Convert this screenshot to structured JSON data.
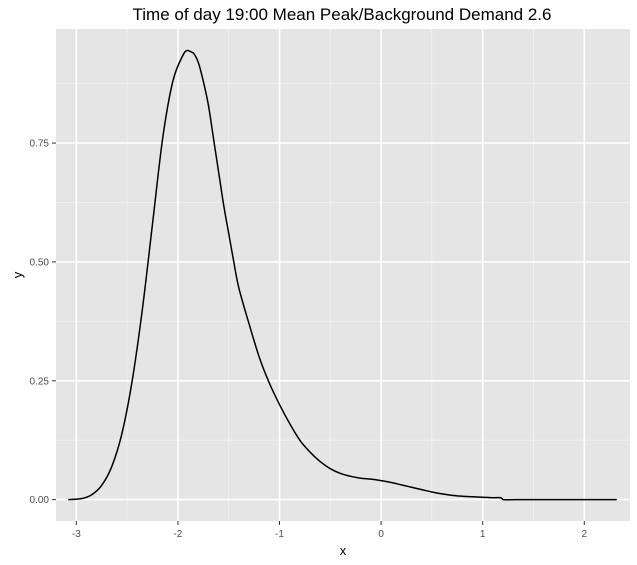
{
  "chart_data": {
    "type": "line",
    "title": "Time of day 19:00  Mean Peak/Background Demand 2.6",
    "xlabel": "x",
    "ylabel": "y",
    "xlim": [
      -3.2,
      2.45
    ],
    "ylim": [
      -0.045,
      0.99
    ],
    "grid": true,
    "x_ticks": [
      -3,
      -2,
      -1,
      0,
      1,
      2
    ],
    "x_tick_labels": [
      "-3",
      "-2",
      "-1",
      "0",
      "1",
      "2"
    ],
    "y_ticks": [
      0.0,
      0.25,
      0.5,
      0.75
    ],
    "y_tick_labels": [
      "0.00",
      "0.25",
      "0.50",
      "0.75"
    ],
    "series": [
      {
        "name": "",
        "color": "#000000",
        "x": [
          -3.08,
          -2.95,
          -2.85,
          -2.75,
          -2.65,
          -2.55,
          -2.45,
          -2.35,
          -2.25,
          -2.15,
          -2.05,
          -1.95,
          -1.9,
          -1.85,
          -1.8,
          -1.75,
          -1.7,
          -1.65,
          -1.6,
          -1.55,
          -1.5,
          -1.45,
          -1.4,
          -1.3,
          -1.2,
          -1.1,
          -1.0,
          -0.9,
          -0.8,
          -0.7,
          -0.6,
          -0.5,
          -0.4,
          -0.3,
          -0.2,
          -0.1,
          0.0,
          0.1,
          0.2,
          0.3,
          0.4,
          0.5,
          0.6,
          0.7,
          0.8,
          0.9,
          1.0,
          1.1,
          1.18,
          1.2,
          1.4,
          1.6,
          1.8,
          2.0,
          2.2,
          2.32
        ],
        "y": [
          0.0,
          0.002,
          0.01,
          0.03,
          0.07,
          0.14,
          0.25,
          0.4,
          0.58,
          0.76,
          0.88,
          0.935,
          0.945,
          0.94,
          0.92,
          0.88,
          0.83,
          0.76,
          0.69,
          0.62,
          0.56,
          0.5,
          0.445,
          0.37,
          0.3,
          0.245,
          0.2,
          0.16,
          0.125,
          0.1,
          0.08,
          0.065,
          0.055,
          0.049,
          0.045,
          0.043,
          0.04,
          0.036,
          0.031,
          0.026,
          0.021,
          0.016,
          0.012,
          0.009,
          0.007,
          0.006,
          0.005,
          0.004,
          0.004,
          0.0,
          0.0,
          0.0,
          0.0,
          0.0,
          0.0,
          0.0
        ]
      }
    ]
  }
}
